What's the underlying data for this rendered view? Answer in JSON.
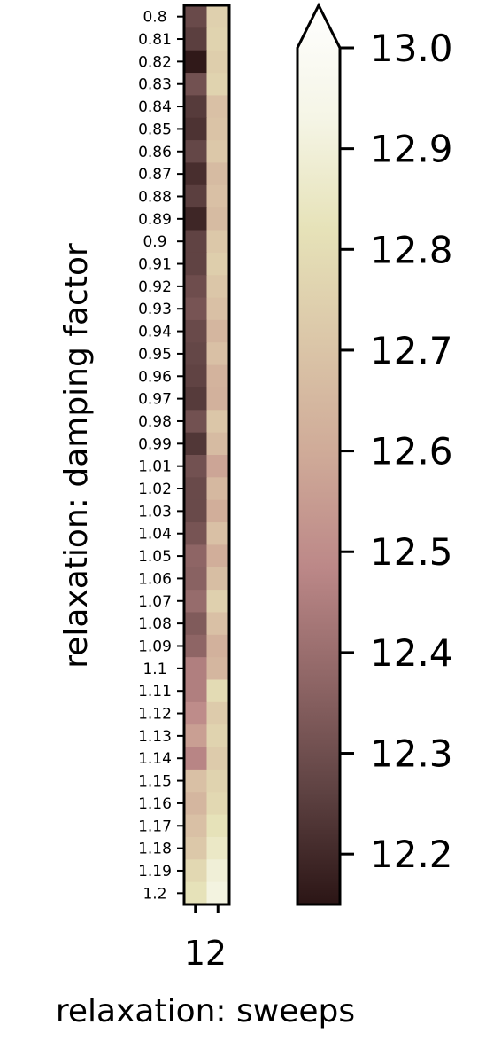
{
  "chart_data": {
    "type": "heatmap",
    "xlabel": "relaxation: sweeps",
    "ylabel": "relaxation: damping factor",
    "x_ticks": [
      "1",
      "2"
    ],
    "x_categories": [
      1,
      2
    ],
    "y_categories": [
      "0.8",
      "0.81",
      "0.82",
      "0.83",
      "0.84",
      "0.85",
      "0.86",
      "0.87",
      "0.88",
      "0.89",
      "0.9",
      "0.91",
      "0.92",
      "0.93",
      "0.94",
      "0.95",
      "0.96",
      "0.97",
      "0.98",
      "0.99",
      "1.01",
      "1.02",
      "1.03",
      "1.04",
      "1.05",
      "1.06",
      "1.07",
      "1.08",
      "1.09",
      "1.1",
      "1.11",
      "1.12",
      "1.13",
      "1.14",
      "1.15",
      "1.16",
      "1.17",
      "1.18",
      "1.19",
      "1.2"
    ],
    "values": [
      [
        12.28,
        12.72
      ],
      [
        12.25,
        12.73
      ],
      [
        12.16,
        12.71
      ],
      [
        12.3,
        12.73
      ],
      [
        12.24,
        12.66
      ],
      [
        12.22,
        12.67
      ],
      [
        12.27,
        12.69
      ],
      [
        12.21,
        12.64
      ],
      [
        12.25,
        12.66
      ],
      [
        12.19,
        12.64
      ],
      [
        12.26,
        12.69
      ],
      [
        12.26,
        12.71
      ],
      [
        12.29,
        12.68
      ],
      [
        12.31,
        12.66
      ],
      [
        12.28,
        12.62
      ],
      [
        12.27,
        12.66
      ],
      [
        12.26,
        12.61
      ],
      [
        12.24,
        12.6
      ],
      [
        12.3,
        12.68
      ],
      [
        12.23,
        12.64
      ],
      [
        12.3,
        12.56
      ],
      [
        12.28,
        12.63
      ],
      [
        12.28,
        12.59
      ],
      [
        12.31,
        12.66
      ],
      [
        12.36,
        12.59
      ],
      [
        12.35,
        12.65
      ],
      [
        12.38,
        12.72
      ],
      [
        12.33,
        12.66
      ],
      [
        12.36,
        12.6
      ],
      [
        12.44,
        12.62
      ],
      [
        12.44,
        12.76
      ],
      [
        12.48,
        12.7
      ],
      [
        12.54,
        12.73
      ],
      [
        12.46,
        12.7
      ],
      [
        12.66,
        12.73
      ],
      [
        12.62,
        12.75
      ],
      [
        12.66,
        12.79
      ],
      [
        12.69,
        12.82
      ],
      [
        12.75,
        12.86
      ],
      [
        12.79,
        12.88
      ]
    ],
    "colorbar": {
      "ticks": [
        "12.2",
        "12.3",
        "12.4",
        "12.5",
        "12.6",
        "12.7",
        "12.8",
        "12.9",
        "13.0"
      ],
      "tick_values": [
        12.2,
        12.3,
        12.4,
        12.5,
        12.6,
        12.7,
        12.8,
        12.9,
        13.0
      ],
      "vmin": 12.15,
      "vmax": 13.0,
      "extend": "max"
    },
    "colormap": [
      "#2b1515",
      "#5e4242",
      "#8f6666",
      "#bc8888",
      "#cfaa98",
      "#dbc6a8",
      "#e6e2b8",
      "#f5f5e6",
      "#ffffff"
    ]
  }
}
